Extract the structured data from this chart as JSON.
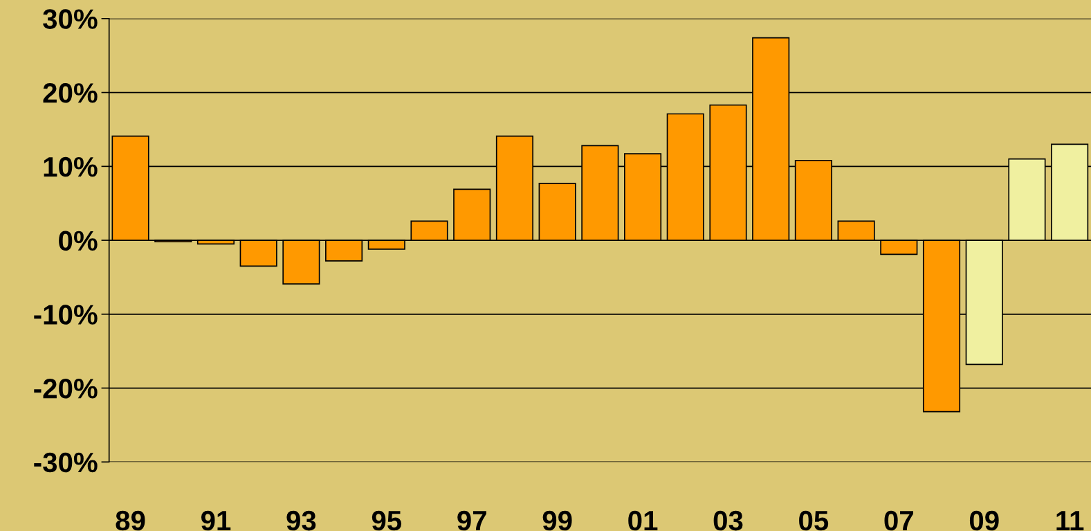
{
  "chart_data": {
    "type": "bar",
    "categories": [
      "89",
      null,
      "91",
      null,
      "93",
      null,
      "95",
      null,
      "97",
      null,
      "99",
      null,
      "01",
      null,
      "03",
      null,
      "05",
      null,
      "07",
      null,
      "09",
      null,
      "11"
    ],
    "values": [
      14.1,
      -0.2,
      -0.5,
      -3.5,
      -5.9,
      -2.8,
      -1.2,
      2.6,
      6.9,
      14.1,
      7.7,
      12.8,
      11.7,
      17.1,
      18.3,
      27.4,
      10.8,
      2.6,
      -1.9,
      -23.2,
      -16.8,
      11.0,
      13.0
    ],
    "colors": [
      "#ff9900",
      "#ff9900",
      "#ff9900",
      "#ff9900",
      "#ff9900",
      "#ff9900",
      "#ff9900",
      "#ff9900",
      "#ff9900",
      "#ff9900",
      "#ff9900",
      "#ff9900",
      "#ff9900",
      "#ff9900",
      "#ff9900",
      "#ff9900",
      "#ff9900",
      "#ff9900",
      "#ff9900",
      "#ff9900",
      "#f0f0a0",
      "#f0f0a0",
      "#f0f0a0"
    ],
    "ylim": [
      -30,
      30
    ],
    "yticks": [
      {
        "value": -30,
        "label": "-30%"
      },
      {
        "value": -20,
        "label": "-20%"
      },
      {
        "value": -10,
        "label": "-10%"
      },
      {
        "value": 0,
        "label": "0%"
      },
      {
        "value": 10,
        "label": "10%"
      },
      {
        "value": 20,
        "label": "20%"
      },
      {
        "value": 30,
        "label": "30%"
      }
    ],
    "grid": "y"
  }
}
